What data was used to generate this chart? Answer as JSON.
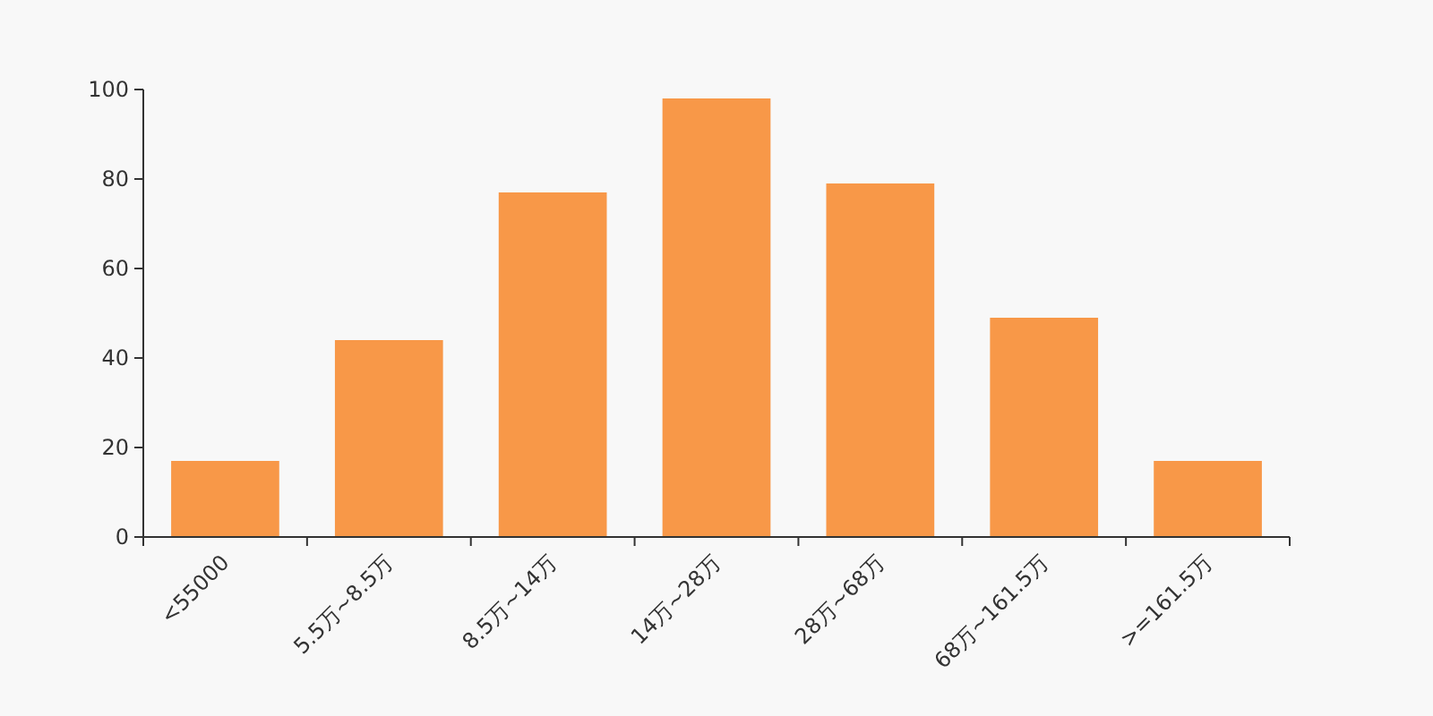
{
  "chart_data": {
    "type": "bar",
    "categories": [
      "<55000",
      "5.5万~8.5万",
      "8.5万~14万",
      "14万~28万",
      "28万~68万",
      "68万~161.5万",
      ">=161.5万"
    ],
    "values": [
      17,
      44,
      77,
      98,
      79,
      49,
      17
    ],
    "color": "#f89848",
    "ylim": [
      0,
      100
    ],
    "yticks": [
      0,
      20,
      40,
      60,
      80,
      100
    ],
    "grid": false
  }
}
